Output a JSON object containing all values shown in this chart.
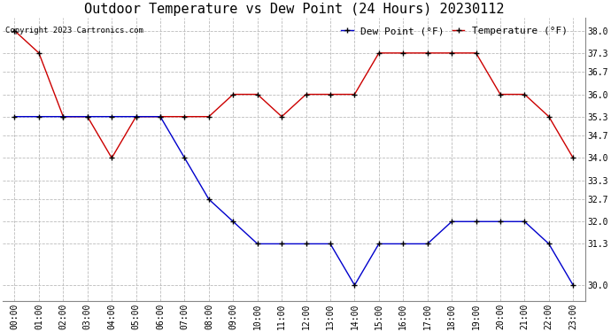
{
  "title": "Outdoor Temperature vs Dew Point (24 Hours) 20230112",
  "copyright": "Copyright 2023 Cartronics.com",
  "legend_dew": "Dew Point (°F)",
  "legend_temp": "Temperature (°F)",
  "hours": [
    "00:00",
    "01:00",
    "02:00",
    "03:00",
    "04:00",
    "05:00",
    "06:00",
    "07:00",
    "08:00",
    "09:00",
    "10:00",
    "11:00",
    "12:00",
    "13:00",
    "14:00",
    "15:00",
    "16:00",
    "17:00",
    "18:00",
    "19:00",
    "20:00",
    "21:00",
    "22:00",
    "23:00"
  ],
  "temperature": [
    38.0,
    37.3,
    35.3,
    35.3,
    34.0,
    35.3,
    35.3,
    35.3,
    35.3,
    36.0,
    36.0,
    35.3,
    36.0,
    36.0,
    36.0,
    37.3,
    37.3,
    37.3,
    37.3,
    37.3,
    36.0,
    36.0,
    35.3,
    34.0
  ],
  "dew_point": [
    35.3,
    35.3,
    35.3,
    35.3,
    35.3,
    35.3,
    35.3,
    34.0,
    32.7,
    32.0,
    31.3,
    31.3,
    31.3,
    31.3,
    30.0,
    31.3,
    31.3,
    31.3,
    32.0,
    32.0,
    32.0,
    32.0,
    31.3,
    30.0
  ],
  "ylim_min": 29.5,
  "ylim_max": 38.4,
  "yticks": [
    30.0,
    31.3,
    32.0,
    32.7,
    33.3,
    34.0,
    34.7,
    35.3,
    36.0,
    36.7,
    37.3,
    38.0
  ],
  "temp_color": "#cc0000",
  "dew_color": "#0000cc",
  "grid_color": "#bbbbbb",
  "bg_color": "#ffffff",
  "title_fontsize": 11,
  "tick_fontsize": 7,
  "legend_fontsize": 8,
  "copyright_fontsize": 6.5
}
